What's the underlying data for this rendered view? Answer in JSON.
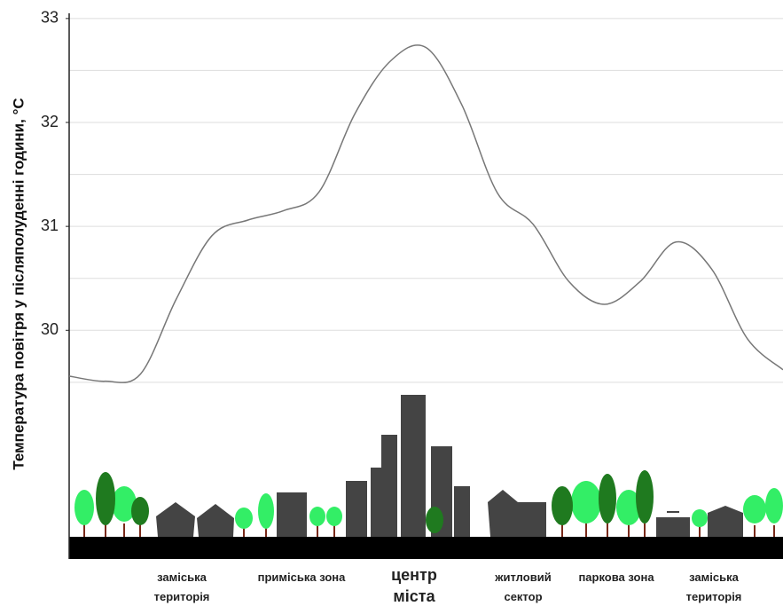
{
  "chart_data": {
    "type": "line",
    "y_label": "Температура повітря у післяполуденні години, °C",
    "categories": [
      null,
      null,
      null,
      null,
      null,
      null,
      null,
      null,
      null,
      null,
      null,
      null,
      null,
      null,
      null,
      null,
      null,
      null,
      null,
      null,
      null
    ],
    "series": [
      {
        "color": "#777777",
        "values": [
          29.56,
          29.51,
          29.58,
          30.3,
          30.91,
          31.06,
          31.15,
          31.33,
          32.08,
          32.59,
          32.72,
          32.17,
          31.32,
          31.02,
          30.47,
          30.25,
          30.47,
          30.85,
          30.59,
          29.92,
          29.62
        ]
      }
    ],
    "ylim": [
      27.8,
      33.05
    ],
    "yticks": [
      30,
      31,
      32,
      33
    ],
    "minor_grid": [
      29.5,
      30.5,
      31.5,
      32.5
    ],
    "grid": true,
    "annotations": [
      "заміська територія",
      "приміська зона",
      "центр міста",
      "житловий сектор",
      "паркова зона",
      "заміська територія"
    ]
  }
}
